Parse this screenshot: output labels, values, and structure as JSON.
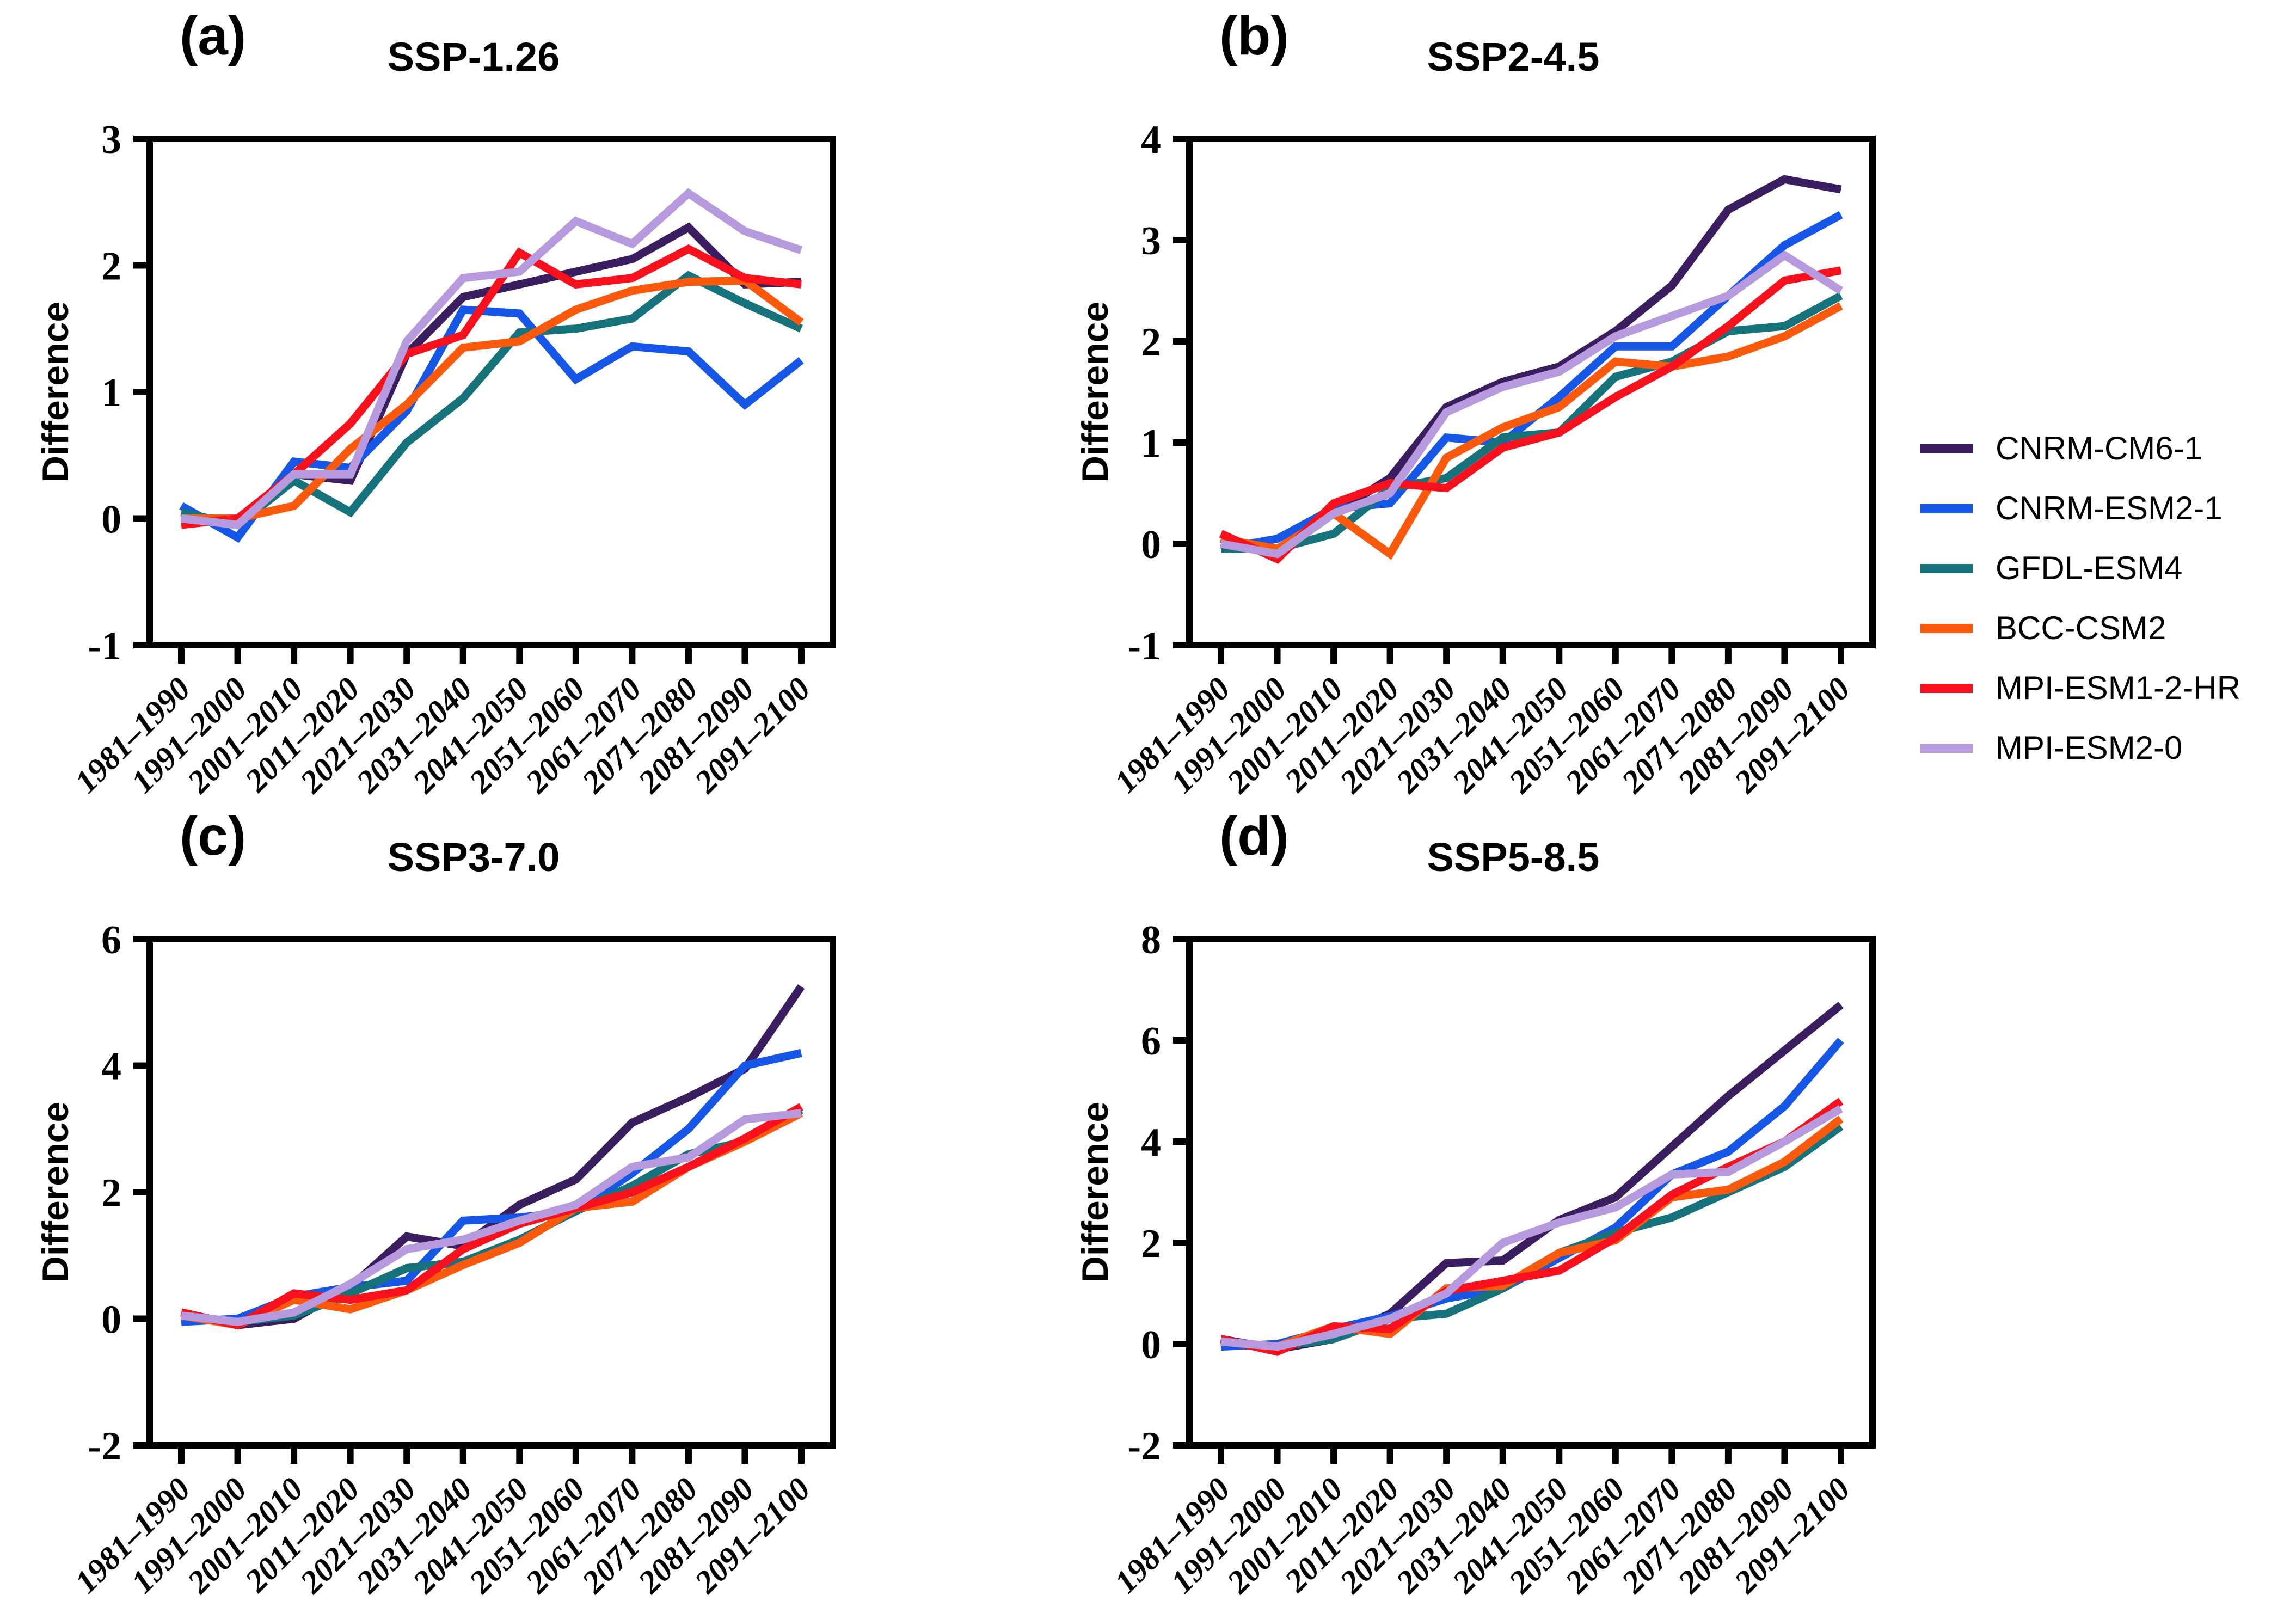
{
  "figure": {
    "background": "#ffffff"
  },
  "legend": {
    "entries": [
      {
        "label": "CNRM-CM6-1",
        "color": "#3B1E5F"
      },
      {
        "label": "CNRM-ESM2-1",
        "color": "#1757E8"
      },
      {
        "label": "GFDL-ESM4",
        "color": "#16737C"
      },
      {
        "label": "BCC-CSM2",
        "color": "#FB5A0D"
      },
      {
        "label": "MPI-ESM1-2-HR",
        "color": "#F8101C"
      },
      {
        "label": "MPI-ESM2-0",
        "color": "#B79ADE"
      }
    ]
  },
  "chart_data": [
    {
      "type": "line",
      "panel_label": "(a)",
      "title": "SSP-1.26",
      "ylabel": "Difference",
      "xlabel": "",
      "grid": false,
      "legend_position": "right-of-figure",
      "ylim": [
        -1,
        3
      ],
      "yticks": [
        -1,
        0,
        1,
        2,
        3
      ],
      "categories": [
        "1981–1990",
        "1991–2000",
        "2001–2010",
        "2011–2020",
        "2021–2030",
        "2031–2040",
        "2041–2050",
        "2051–2060",
        "2061–2070",
        "2071–2080",
        "2081–2090",
        "2091–2100"
      ],
      "series": [
        {
          "name": "CNRM-CM6-1",
          "color": "#3B1E5F",
          "values": [
            0.0,
            -0.05,
            0.35,
            0.3,
            1.3,
            1.75,
            1.85,
            1.95,
            2.05,
            2.3,
            1.85,
            1.87
          ]
        },
        {
          "name": "CNRM-ESM2-1",
          "color": "#1757E8",
          "values": [
            0.1,
            -0.15,
            0.45,
            0.4,
            0.85,
            1.65,
            1.62,
            1.1,
            1.36,
            1.32,
            0.9,
            1.25
          ]
        },
        {
          "name": "GFDL-ESM4",
          "color": "#16737C",
          "values": [
            0.05,
            -0.05,
            0.3,
            0.05,
            0.6,
            0.95,
            1.47,
            1.5,
            1.58,
            1.92,
            1.7,
            1.5
          ]
        },
        {
          "name": "BCC-CSM2",
          "color": "#FB5A0D",
          "values": [
            0.0,
            0.0,
            0.1,
            0.55,
            0.9,
            1.35,
            1.4,
            1.65,
            1.8,
            1.87,
            1.88,
            1.55
          ]
        },
        {
          "name": "MPI-ESM1-2-HR",
          "color": "#F8101C",
          "values": [
            -0.05,
            0.0,
            0.35,
            0.75,
            1.3,
            1.45,
            2.1,
            1.85,
            1.9,
            2.13,
            1.9,
            1.85
          ]
        },
        {
          "name": "MPI-ESM2-0",
          "color": "#B79ADE",
          "values": [
            0.0,
            -0.05,
            0.35,
            0.35,
            1.4,
            1.9,
            1.95,
            2.35,
            2.17,
            2.57,
            2.27,
            2.12
          ]
        }
      ]
    },
    {
      "type": "line",
      "panel_label": "(b)",
      "title": "SSP2-4.5",
      "ylabel": "Difference",
      "xlabel": "",
      "grid": false,
      "legend_position": "right-of-figure",
      "ylim": [
        -1,
        4
      ],
      "yticks": [
        -1,
        0,
        1,
        2,
        3,
        4
      ],
      "categories": [
        "1981–1990",
        "1991–2000",
        "2001–2010",
        "2011–2020",
        "2021–2030",
        "2031–2040",
        "2041–2050",
        "2051–2060",
        "2061–2070",
        "2071–2080",
        "2081–2090",
        "2091–2100"
      ],
      "series": [
        {
          "name": "CNRM-CM6-1",
          "color": "#3B1E5F",
          "values": [
            0.05,
            -0.1,
            0.3,
            0.65,
            1.35,
            1.6,
            1.75,
            2.1,
            2.55,
            3.3,
            3.6,
            3.5
          ]
        },
        {
          "name": "CNRM-ESM2-1",
          "color": "#1757E8",
          "values": [
            -0.05,
            0.05,
            0.35,
            0.4,
            1.05,
            1.0,
            1.45,
            1.95,
            1.95,
            2.45,
            2.95,
            3.25
          ]
        },
        {
          "name": "GFDL-ESM4",
          "color": "#16737C",
          "values": [
            -0.05,
            -0.05,
            0.1,
            0.55,
            0.65,
            1.05,
            1.1,
            1.65,
            1.8,
            2.1,
            2.15,
            2.45
          ]
        },
        {
          "name": "BCC-CSM2",
          "color": "#FB5A0D",
          "values": [
            0.05,
            -0.05,
            0.3,
            -0.1,
            0.85,
            1.15,
            1.35,
            1.8,
            1.75,
            1.85,
            2.05,
            2.35
          ]
        },
        {
          "name": "MPI-ESM1-2-HR",
          "color": "#F8101C",
          "values": [
            0.1,
            -0.15,
            0.4,
            0.6,
            0.55,
            0.95,
            1.1,
            1.45,
            1.75,
            2.15,
            2.6,
            2.7
          ]
        },
        {
          "name": "MPI-ESM2-0",
          "color": "#B79ADE",
          "values": [
            0.0,
            -0.1,
            0.3,
            0.5,
            1.3,
            1.55,
            1.7,
            2.05,
            2.25,
            2.45,
            2.85,
            2.5
          ]
        }
      ]
    },
    {
      "type": "line",
      "panel_label": "(c)",
      "title": "SSP3-7.0",
      "ylabel": "Difference",
      "xlabel": "",
      "grid": false,
      "legend_position": "right-of-figure",
      "ylim": [
        -2,
        6
      ],
      "yticks": [
        -2,
        0,
        2,
        4,
        6
      ],
      "categories": [
        "1981–1990",
        "1991–2000",
        "2001–2010",
        "2011–2020",
        "2021–2030",
        "2031–2040",
        "2041–2050",
        "2051–2060",
        "2061–2070",
        "2071–2080",
        "2081–2090",
        "2091–2100"
      ],
      "series": [
        {
          "name": "CNRM-CM6-1",
          "color": "#3B1E5F",
          "values": [
            0.1,
            -0.1,
            0.0,
            0.5,
            1.3,
            1.15,
            1.8,
            2.2,
            3.1,
            3.5,
            3.95,
            5.25
          ]
        },
        {
          "name": "CNRM-ESM2-1",
          "color": "#1757E8",
          "values": [
            -0.05,
            0.0,
            0.35,
            0.5,
            0.6,
            1.55,
            1.6,
            1.7,
            2.3,
            3.0,
            4.0,
            4.2
          ]
        },
        {
          "name": "GFDL-ESM4",
          "color": "#16737C",
          "values": [
            0.05,
            -0.05,
            0.05,
            0.4,
            0.8,
            0.9,
            1.25,
            1.7,
            2.1,
            2.6,
            2.8,
            3.3
          ]
        },
        {
          "name": "BCC-CSM2",
          "color": "#FB5A0D",
          "values": [
            0.05,
            -0.1,
            0.3,
            0.15,
            0.45,
            0.85,
            1.2,
            1.75,
            1.85,
            2.4,
            2.8,
            3.25
          ]
        },
        {
          "name": "MPI-ESM1-2-HR",
          "color": "#F8101C",
          "values": [
            0.1,
            -0.1,
            0.4,
            0.3,
            0.45,
            1.1,
            1.5,
            1.75,
            2.0,
            2.4,
            2.85,
            3.35
          ]
        },
        {
          "name": "MPI-ESM2-0",
          "color": "#B79ADE",
          "values": [
            0.05,
            -0.05,
            0.1,
            0.55,
            1.1,
            1.25,
            1.55,
            1.8,
            2.4,
            2.55,
            3.15,
            3.25
          ]
        }
      ]
    },
    {
      "type": "line",
      "panel_label": "(d)",
      "title": "SSP5-8.5",
      "ylabel": "Difference",
      "xlabel": "",
      "grid": false,
      "legend_position": "right-of-figure",
      "ylim": [
        -2,
        8
      ],
      "yticks": [
        -2,
        0,
        2,
        4,
        6,
        8
      ],
      "categories": [
        "1981–1990",
        "1991–2000",
        "2001–2010",
        "2011–2020",
        "2021–2030",
        "2031–2040",
        "2041–2050",
        "2051–2060",
        "2061–2070",
        "2071–2080",
        "2081–2090",
        "2091–2100"
      ],
      "series": [
        {
          "name": "CNRM-CM6-1",
          "color": "#3B1E5F",
          "values": [
            0.1,
            -0.1,
            0.1,
            0.6,
            1.6,
            1.65,
            2.45,
            2.9,
            3.9,
            4.9,
            5.8,
            6.7
          ]
        },
        {
          "name": "CNRM-ESM2-1",
          "color": "#1757E8",
          "values": [
            -0.05,
            0.0,
            0.3,
            0.55,
            0.9,
            1.1,
            1.7,
            2.3,
            3.35,
            3.8,
            4.7,
            6.0
          ]
        },
        {
          "name": "GFDL-ESM4",
          "color": "#16737C",
          "values": [
            0.05,
            -0.05,
            0.1,
            0.5,
            0.6,
            1.1,
            1.8,
            2.2,
            2.5,
            3.0,
            3.5,
            4.3
          ]
        },
        {
          "name": "BCC-CSM2",
          "color": "#FB5A0D",
          "values": [
            0.05,
            -0.05,
            0.35,
            0.2,
            1.1,
            1.15,
            1.8,
            2.05,
            2.9,
            3.05,
            3.6,
            4.45
          ]
        },
        {
          "name": "MPI-ESM1-2-HR",
          "color": "#F8101C",
          "values": [
            0.1,
            -0.15,
            0.35,
            0.3,
            1.05,
            1.25,
            1.45,
            2.1,
            2.95,
            3.5,
            4.0,
            4.8
          ]
        },
        {
          "name": "MPI-ESM2-0",
          "color": "#B79ADE",
          "values": [
            0.05,
            -0.05,
            0.2,
            0.5,
            1.0,
            2.0,
            2.4,
            2.7,
            3.35,
            3.4,
            4.0,
            4.65
          ]
        }
      ]
    }
  ]
}
